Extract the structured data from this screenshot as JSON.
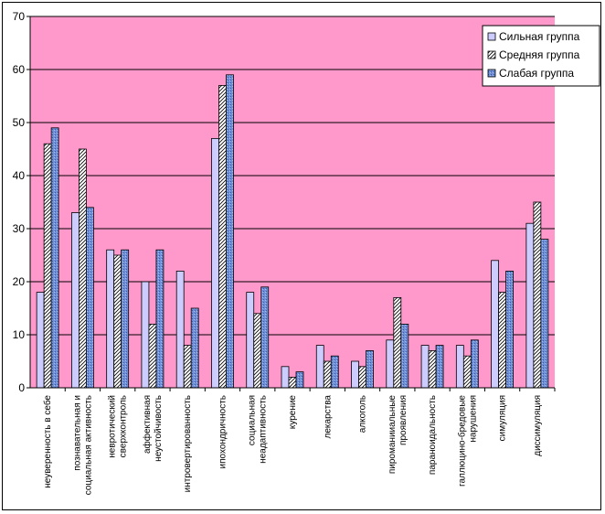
{
  "colors": {
    "plot_background": "#ff99cc",
    "gridline": "#000000",
    "series_strong": "#ccccff",
    "series_medium": "#ffffff",
    "series_weak": "#6f8fd6"
  },
  "chart_data": {
    "type": "bar",
    "title": "",
    "xlabel": "",
    "ylabel": "",
    "ylim": [
      0,
      70
    ],
    "yticks": [
      0,
      10,
      20,
      30,
      40,
      50,
      60,
      70
    ],
    "grid": true,
    "legend_position": "top-right",
    "categories": [
      [
        "неуверенность в себе"
      ],
      [
        "познавательная и",
        "социальная активность"
      ],
      [
        "невротический",
        "сверхконтроль"
      ],
      [
        "аффективная",
        "неустойчивость"
      ],
      [
        "интровертированность"
      ],
      [
        "ипохондричность"
      ],
      [
        "социальная",
        "неадаптивность"
      ],
      [
        "курение"
      ],
      [
        "лекарства"
      ],
      [
        "алкоголь"
      ],
      [
        "пиромании­альные",
        "проявления"
      ],
      [
        "параноидальность"
      ],
      [
        "галлюцино-бредовые",
        "нарушения"
      ],
      [
        "симуляция"
      ],
      [
        "диссимуляция"
      ]
    ],
    "series": [
      {
        "name": "Сильная группа",
        "values": [
          18,
          33,
          26,
          20,
          22,
          47,
          18,
          4,
          8,
          5,
          9,
          8,
          8,
          24,
          31
        ]
      },
      {
        "name": "Средняя группа",
        "values": [
          46,
          45,
          25,
          12,
          8,
          57,
          14,
          2,
          5,
          4,
          17,
          7,
          6,
          18,
          35
        ]
      },
      {
        "name": "Слабая группа",
        "values": [
          49,
          34,
          26,
          26,
          15,
          59,
          19,
          3,
          6,
          7,
          12,
          8,
          9,
          22,
          28
        ]
      }
    ]
  }
}
